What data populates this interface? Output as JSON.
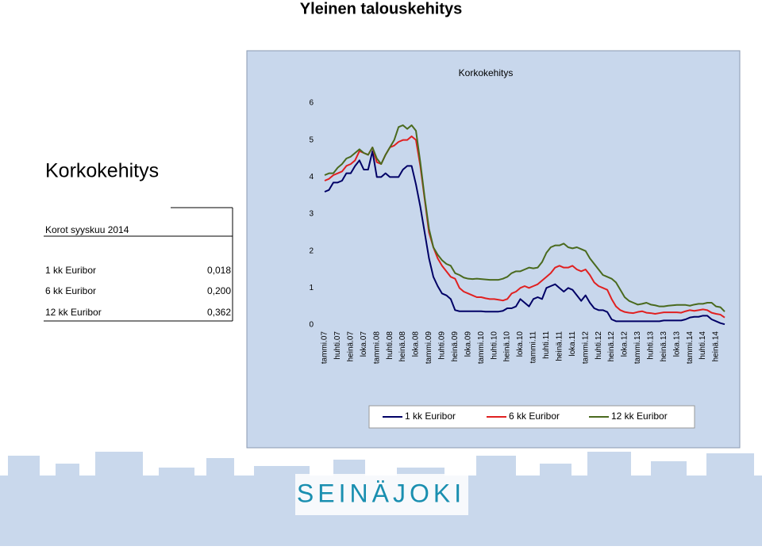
{
  "slide_title": "Yleinen talouskehitys",
  "side_panel": {
    "heading": "Korkokehitys",
    "table": {
      "caption": "Korot syyskuu 2014",
      "rows": [
        [
          "1 kk Euribor",
          "0,018"
        ],
        [
          "6 kk Euribor",
          "0,200"
        ],
        [
          "12 kk Euribor",
          "0,362"
        ]
      ]
    }
  },
  "logo": {
    "text": "SEINÄJOKI"
  },
  "chart_data": {
    "type": "line",
    "title": "Korkokehitys",
    "categories": [
      "tammi.07",
      null,
      null,
      "huhti.07",
      null,
      null,
      "heinä.07",
      null,
      null,
      "loka.07",
      null,
      null,
      "tammi.08",
      null,
      null,
      "huhti.08",
      null,
      null,
      "heinä.08",
      null,
      null,
      "loka.08",
      null,
      null,
      "tammi.09",
      null,
      null,
      "huhti.09",
      null,
      null,
      "heinä.09",
      null,
      null,
      "loka.09",
      null,
      null,
      "tammi.10",
      null,
      null,
      "huhti.10",
      null,
      null,
      "heinä.10",
      null,
      null,
      "loka.10",
      null,
      null,
      "tammi.11",
      null,
      null,
      "huhti.11",
      null,
      null,
      "heinä.11",
      null,
      null,
      "loka.11",
      null,
      null,
      "tammi.12",
      null,
      null,
      "huhti.12",
      null,
      null,
      "heinä.12",
      null,
      null,
      "loka.12",
      null,
      null,
      "tammi.13",
      null,
      null,
      "huhti.13",
      null,
      null,
      "heinä.13",
      null,
      null,
      "loka.13",
      null,
      null,
      "tammi.14",
      null,
      null,
      "huhti.14",
      null,
      null,
      "heinä.14",
      null,
      null
    ],
    "series": [
      {
        "name": "1 kk Euribor",
        "color": "#000066",
        "values": [
          3.6,
          3.65,
          3.85,
          3.85,
          3.9,
          4.1,
          4.1,
          4.3,
          4.45,
          4.2,
          4.2,
          4.7,
          4.0,
          4.0,
          4.1,
          4.0,
          4.0,
          4.0,
          4.2,
          4.3,
          4.3,
          3.8,
          3.2,
          2.5,
          1.8,
          1.3,
          1.05,
          0.85,
          0.8,
          0.7,
          0.4,
          0.37,
          0.37,
          0.37,
          0.37,
          0.37,
          0.37,
          0.36,
          0.36,
          0.36,
          0.36,
          0.38,
          0.45,
          0.45,
          0.5,
          0.7,
          0.6,
          0.5,
          0.7,
          0.75,
          0.7,
          1.0,
          1.05,
          1.1,
          1.0,
          0.9,
          1.0,
          0.95,
          0.8,
          0.65,
          0.8,
          0.6,
          0.45,
          0.4,
          0.4,
          0.35,
          0.15,
          0.1,
          0.1,
          0.1,
          0.1,
          0.1,
          0.1,
          0.1,
          0.1,
          0.1,
          0.1,
          0.1,
          0.12,
          0.12,
          0.12,
          0.12,
          0.12,
          0.15,
          0.2,
          0.22,
          0.22,
          0.25,
          0.25,
          0.15,
          0.1,
          0.05,
          0.018
        ]
      },
      {
        "name": "6 kk Euribor",
        "color": "#e02020",
        "values": [
          3.9,
          3.95,
          4.05,
          4.1,
          4.15,
          4.3,
          4.35,
          4.45,
          4.7,
          4.65,
          4.6,
          4.8,
          4.4,
          4.35,
          4.6,
          4.8,
          4.85,
          4.95,
          5.0,
          5.0,
          5.1,
          5.0,
          4.3,
          3.4,
          2.5,
          2.1,
          1.8,
          1.6,
          1.45,
          1.3,
          1.25,
          1.0,
          0.9,
          0.85,
          0.8,
          0.75,
          0.75,
          0.72,
          0.7,
          0.7,
          0.68,
          0.66,
          0.7,
          0.85,
          0.9,
          1.0,
          1.05,
          1.0,
          1.05,
          1.1,
          1.2,
          1.3,
          1.4,
          1.55,
          1.6,
          1.55,
          1.55,
          1.6,
          1.5,
          1.45,
          1.5,
          1.35,
          1.15,
          1.05,
          1.0,
          0.95,
          0.7,
          0.5,
          0.4,
          0.35,
          0.33,
          0.32,
          0.35,
          0.37,
          0.33,
          0.32,
          0.3,
          0.32,
          0.34,
          0.34,
          0.34,
          0.34,
          0.33,
          0.37,
          0.4,
          0.38,
          0.4,
          0.42,
          0.4,
          0.33,
          0.3,
          0.28,
          0.2
        ]
      },
      {
        "name": "12 kk Euribor",
        "color": "#4a6a1e",
        "values": [
          4.05,
          4.1,
          4.1,
          4.25,
          4.35,
          4.5,
          4.55,
          4.65,
          4.75,
          4.65,
          4.6,
          4.8,
          4.5,
          4.35,
          4.6,
          4.8,
          5.0,
          5.35,
          5.4,
          5.3,
          5.4,
          5.25,
          4.4,
          3.45,
          2.6,
          2.1,
          1.9,
          1.75,
          1.65,
          1.6,
          1.4,
          1.35,
          1.28,
          1.25,
          1.24,
          1.25,
          1.24,
          1.23,
          1.22,
          1.22,
          1.22,
          1.25,
          1.3,
          1.4,
          1.45,
          1.45,
          1.5,
          1.55,
          1.53,
          1.55,
          1.7,
          1.95,
          2.1,
          2.15,
          2.15,
          2.2,
          2.1,
          2.07,
          2.1,
          2.05,
          2.0,
          1.8,
          1.65,
          1.5,
          1.35,
          1.3,
          1.25,
          1.15,
          0.95,
          0.75,
          0.65,
          0.6,
          0.55,
          0.57,
          0.6,
          0.55,
          0.53,
          0.5,
          0.5,
          0.52,
          0.53,
          0.54,
          0.54,
          0.54,
          0.52,
          0.55,
          0.57,
          0.57,
          0.6,
          0.6,
          0.5,
          0.48,
          0.36
        ]
      }
    ],
    "ylim": [
      0,
      6
    ],
    "yticks": [
      0,
      1,
      2,
      3,
      4,
      5,
      6
    ],
    "grid": false,
    "legend": "bottom"
  }
}
